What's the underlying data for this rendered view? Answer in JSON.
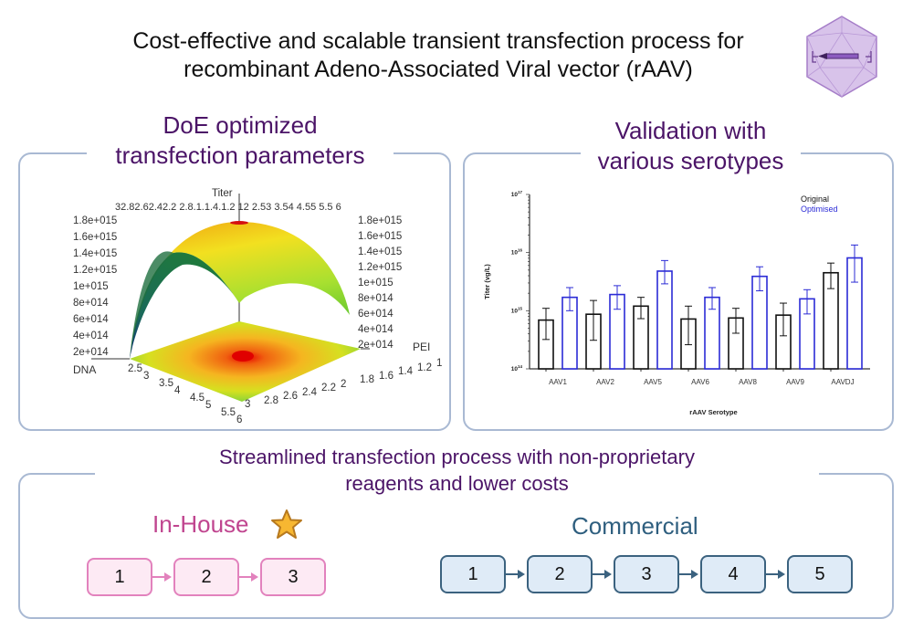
{
  "header": {
    "title_line1": "Cost-effective and scalable transient transfection process for",
    "title_line2": "recombinant Adeno-Associated Viral vector (rAAV)",
    "logo": "aav-capsid-plasmid-icon"
  },
  "doe_panel": {
    "title_line1": "DoE optimized",
    "title_line2": "transfection parameters",
    "plot": {
      "type": "3d-surface",
      "z_label": "Titer",
      "x_label": "DNA",
      "y_label": "PEI",
      "z_ticks_left": [
        "1.8e+015",
        "1.6e+015",
        "1.4e+015",
        "1.2e+015",
        "1e+015",
        "8e+014",
        "6e+014",
        "4e+014",
        "2e+014"
      ],
      "z_ticks_right": [
        "1.8e+015",
        "1.6e+015",
        "1.4e+015",
        "1.2e+015",
        "1e+015",
        "8e+014",
        "6e+014",
        "4e+014",
        "2e+014"
      ],
      "top_ticks": "32.82.62.42.2  2.8.1.1.4.1.2 12  2.53  3.54  4.55  5.5 6",
      "dna_ticks": [
        "2.5",
        "3",
        "3.5",
        "4",
        "4.5",
        "5",
        "5.5",
        "6"
      ],
      "pei_ticks": [
        "1",
        "1.2",
        "1.4",
        "1.6",
        "1.8",
        "2",
        "2.2",
        "2.4",
        "2.6",
        "2.8",
        "3"
      ]
    }
  },
  "validation_panel": {
    "title_line1": "Validation with",
    "title_line2": "various serotypes"
  },
  "chart_data": {
    "type": "bar",
    "title": "",
    "xlabel": "rAAV Serotype",
    "ylabel": "Titer (vg/L)",
    "yscale": "log",
    "ylim": [
      100000000000000.0,
      1e+17
    ],
    "y_tick_labels": [
      {
        "base": "10",
        "exp": "17"
      },
      {
        "base": "10",
        "exp": "16"
      },
      {
        "base": "10",
        "exp": "15"
      },
      {
        "base": "10",
        "exp": "14"
      }
    ],
    "legend_position": "top-right",
    "categories": [
      "AAV1",
      "AAV2",
      "AAV5",
      "AAV6",
      "AAV8",
      "AAV9",
      "AAVDJ"
    ],
    "series": [
      {
        "name": "Original",
        "color": "#111111",
        "values": [
          690000000000000.0,
          870000000000000.0,
          1200000000000000.0,
          720000000000000.0,
          750000000000000.0,
          840000000000000.0,
          4500000000000000.0
        ],
        "error_low": [
          320000000000000.0,
          310000000000000.0,
          730000000000000.0,
          260000000000000.0,
          410000000000000.0,
          370000000000000.0,
          2400000000000000.0
        ],
        "error_high": [
          1100000000000000.0,
          1500000000000000.0,
          1700000000000000.0,
          1200000000000000.0,
          1100000000000000.0,
          1350000000000000.0,
          6600000000000000.0
        ]
      },
      {
        "name": "Optimised",
        "color": "#2b2bd6",
        "values": [
          1700000000000000.0,
          1900000000000000.0,
          4800000000000000.0,
          1700000000000000.0,
          3900000000000000.0,
          1600000000000000.0,
          8100000000000000.0
        ],
        "error_low": [
          1000000000000000.0,
          1060000000000000.0,
          2900000000000000.0,
          1060000000000000.0,
          2200000000000000.0,
          880000000000000.0,
          3100000000000000.0
        ],
        "error_high": [
          2500000000000000.0,
          2700000000000000.0,
          7300000000000000.0,
          2500000000000000.0,
          5700000000000000.0,
          2300000000000000.0,
          1.35e+16
        ]
      }
    ]
  },
  "process_panel": {
    "title_line1": "Streamlined transfection process with non-proprietary",
    "title_line2": "reagents and lower costs",
    "in_house": {
      "label": "In-House",
      "badge": "star-icon",
      "steps": [
        "1",
        "2",
        "3"
      ],
      "color": "#c0458f"
    },
    "commercial": {
      "label": "Commercial",
      "steps": [
        "1",
        "2",
        "3",
        "4",
        "5"
      ],
      "color": "#2f5f7f"
    }
  }
}
